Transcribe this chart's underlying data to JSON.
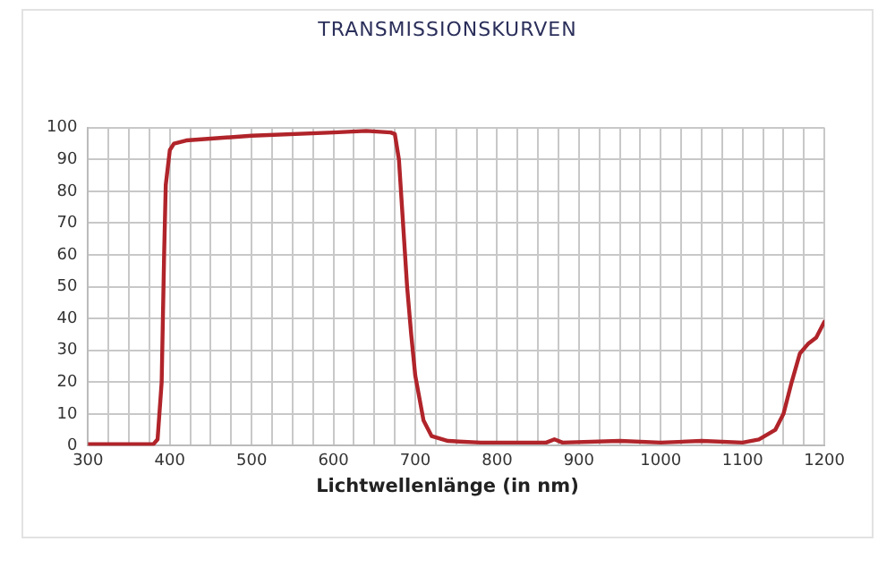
{
  "chart_data": {
    "type": "line",
    "title": "TRANSMISSIONSKURVEN",
    "xlabel": "Lichtwellenlänge (in nm)",
    "x": [
      300,
      380,
      385,
      390,
      393,
      395,
      400,
      405,
      420,
      500,
      600,
      640,
      670,
      675,
      680,
      685,
      690,
      695,
      700,
      710,
      720,
      740,
      780,
      860,
      870,
      880,
      950,
      1000,
      1050,
      1100,
      1120,
      1140,
      1150,
      1160,
      1170,
      1180,
      1190,
      1200
    ],
    "series": [
      {
        "color": "#b0242a",
        "values": [
          0.5,
          0.5,
          2,
          20,
          60,
          82,
          93,
          95,
          96,
          97.5,
          98.5,
          99,
          98.5,
          98,
          90,
          70,
          50,
          35,
          22,
          8,
          3,
          1.5,
          1,
          1,
          2,
          1,
          1.5,
          1,
          1.5,
          1,
          2,
          5,
          10,
          20,
          29,
          32,
          34,
          39
        ]
      }
    ],
    "xlim": [
      300,
      1200
    ],
    "xticks": [
      300,
      {
        "value": 325,
        "label": null
      },
      {
        "value": 350,
        "label": null
      },
      {
        "value": 375,
        "label": null
      },
      400,
      {
        "value": 425,
        "label": null
      },
      {
        "value": 450,
        "label": null
      },
      {
        "value": 475,
        "label": null
      },
      500,
      {
        "value": 525,
        "label": null
      },
      {
        "value": 550,
        "label": null
      },
      {
        "value": 575,
        "label": null
      },
      600,
      {
        "value": 625,
        "label": null
      },
      {
        "value": 650,
        "label": null
      },
      {
        "value": 675,
        "label": null
      },
      700,
      {
        "value": 725,
        "label": null
      },
      {
        "value": 750,
        "label": null
      },
      {
        "value": 775,
        "label": null
      },
      800,
      {
        "value": 825,
        "label": null
      },
      {
        "value": 850,
        "label": null
      },
      {
        "value": 875,
        "label": null
      },
      900,
      {
        "value": 925,
        "label": null
      },
      {
        "value": 950,
        "label": null
      },
      {
        "value": 975,
        "label": null
      },
      1000,
      {
        "value": 1025,
        "label": null
      },
      {
        "value": 1050,
        "label": null
      },
      {
        "value": 1075,
        "label": null
      },
      1100,
      {
        "value": 1125,
        "label": null
      },
      {
        "value": 1150,
        "label": null
      },
      {
        "value": 1175,
        "label": null
      },
      1200
    ],
    "ylim": [
      0,
      100
    ],
    "yticks": [
      0,
      10,
      20,
      30,
      40,
      50,
      60,
      70,
      80,
      90,
      100
    ],
    "grid": true,
    "legend": false,
    "marker": "none",
    "line_style": "solid"
  }
}
